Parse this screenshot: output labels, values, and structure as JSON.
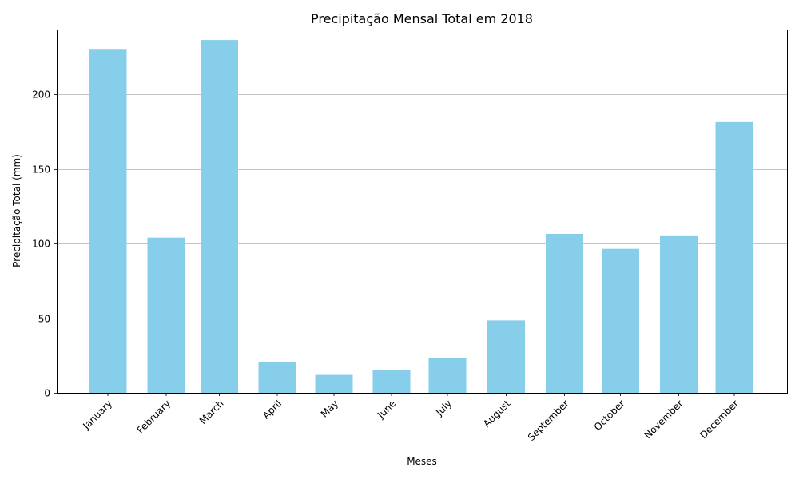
{
  "chart_data": {
    "type": "bar",
    "title": "Precipitação Mensal Total em 2018",
    "xlabel": "Meses",
    "ylabel": "Precipitação Total (mm)",
    "categories": [
      "January",
      "February",
      "March",
      "April",
      "May",
      "June",
      "July",
      "August",
      "September",
      "October",
      "November",
      "December"
    ],
    "values": [
      230,
      104,
      236.5,
      20.5,
      12,
      15,
      23.5,
      48.5,
      106.5,
      96.5,
      105.5,
      181.5
    ],
    "ylim": [
      0,
      243.5
    ],
    "yticks": [
      0,
      50,
      100,
      150,
      200
    ],
    "grid": "y-axis major gridlines",
    "bar_color": "#87ceeb",
    "grid_color": "#b0b0b0",
    "x_tick_rotation_deg": 45
  }
}
